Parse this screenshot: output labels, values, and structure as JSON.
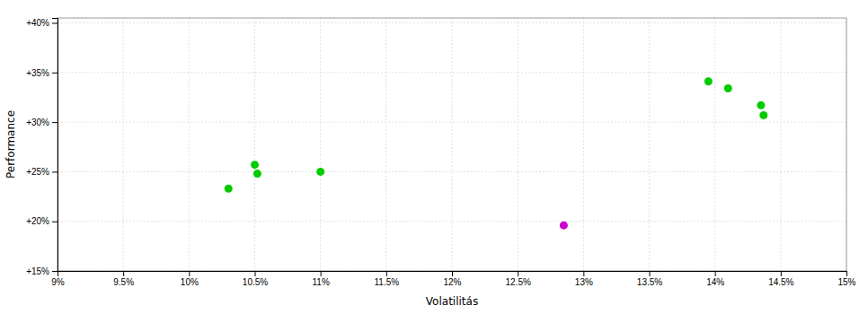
{
  "chart_data": {
    "type": "scatter",
    "xlabel": "Volatilitás",
    "ylabel": "Performance",
    "xlim": [
      0.09,
      0.15
    ],
    "ylim": [
      0.15,
      0.405
    ],
    "xticks": [
      {
        "value": 0.09,
        "label": "9%"
      },
      {
        "value": 0.095,
        "label": "9.5%"
      },
      {
        "value": 0.1,
        "label": "10%"
      },
      {
        "value": 0.105,
        "label": "10.5%"
      },
      {
        "value": 0.11,
        "label": "11%"
      },
      {
        "value": 0.115,
        "label": "11.5%"
      },
      {
        "value": 0.12,
        "label": "12%"
      },
      {
        "value": 0.125,
        "label": "12.5%"
      },
      {
        "value": 0.13,
        "label": "13%"
      },
      {
        "value": 0.135,
        "label": "13.5%"
      },
      {
        "value": 0.14,
        "label": "14%"
      },
      {
        "value": 0.145,
        "label": "14.5%"
      },
      {
        "value": 0.15,
        "label": "15%"
      }
    ],
    "yticks": [
      {
        "value": 0.15,
        "label": "+15%"
      },
      {
        "value": 0.2,
        "label": "+20%"
      },
      {
        "value": 0.25,
        "label": "+25%"
      },
      {
        "value": 0.3,
        "label": "+30%"
      },
      {
        "value": 0.35,
        "label": "+35%"
      },
      {
        "value": 0.4,
        "label": "+40%"
      }
    ],
    "grid": true,
    "series": [
      {
        "color": "#00cc00",
        "x": [
          0.103,
          0.105,
          0.1052,
          0.11,
          0.1395,
          0.141,
          0.1435,
          0.1437
        ],
        "values": [
          0.233,
          0.257,
          0.248,
          0.25,
          0.341,
          0.334,
          0.317,
          0.307
        ]
      },
      {
        "color": "#cc00cc",
        "x": [
          0.1285
        ],
        "values": [
          0.196
        ]
      }
    ]
  }
}
